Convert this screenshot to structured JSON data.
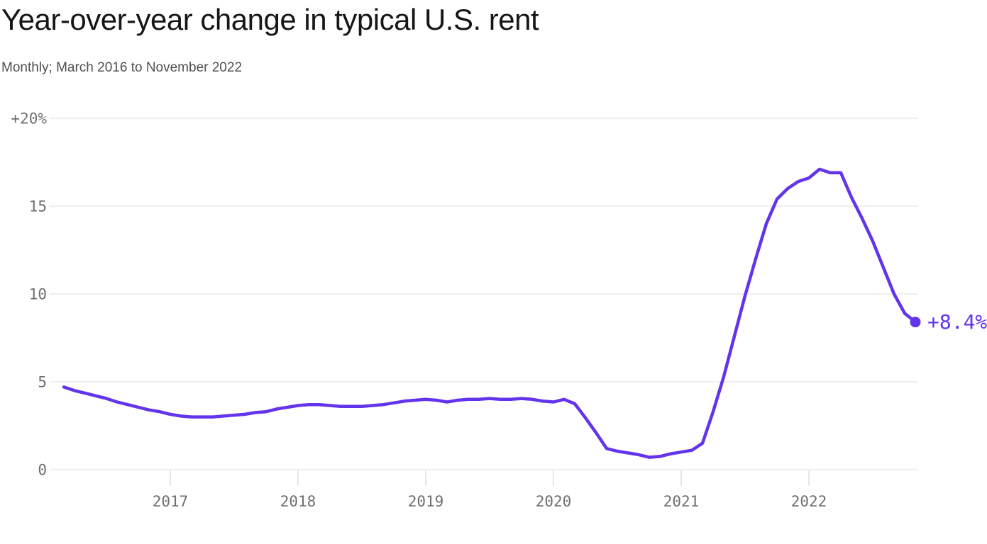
{
  "header": {
    "title": "Year-over-year change in typical U.S. rent",
    "subtitle": "Monthly; March 2016 to November 2022"
  },
  "chart_data": {
    "type": "line",
    "title": "Year-over-year change in typical U.S. rent",
    "subtitle": "Monthly; March 2016 to November 2022",
    "unit": "%",
    "frequency": "monthly",
    "x_start": "Mar 2016",
    "x_end": "Nov 2022",
    "x": [
      "Mar 2016",
      "Apr 2016",
      "May 2016",
      "Jun 2016",
      "Jul 2016",
      "Aug 2016",
      "Sep 2016",
      "Oct 2016",
      "Nov 2016",
      "Dec 2016",
      "Jan 2017",
      "Feb 2017",
      "Mar 2017",
      "Apr 2017",
      "May 2017",
      "Jun 2017",
      "Jul 2017",
      "Aug 2017",
      "Sep 2017",
      "Oct 2017",
      "Nov 2017",
      "Dec 2017",
      "Jan 2018",
      "Feb 2018",
      "Mar 2018",
      "Apr 2018",
      "May 2018",
      "Jun 2018",
      "Jul 2018",
      "Aug 2018",
      "Sep 2018",
      "Oct 2018",
      "Nov 2018",
      "Dec 2018",
      "Jan 2019",
      "Feb 2019",
      "Mar 2019",
      "Apr 2019",
      "May 2019",
      "Jun 2019",
      "Jul 2019",
      "Aug 2019",
      "Sep 2019",
      "Oct 2019",
      "Nov 2019",
      "Dec 2019",
      "Jan 2020",
      "Feb 2020",
      "Mar 2020",
      "Apr 2020",
      "May 2020",
      "Jun 2020",
      "Jul 2020",
      "Aug 2020",
      "Sep 2020",
      "Oct 2020",
      "Nov 2020",
      "Dec 2020",
      "Jan 2021",
      "Feb 2021",
      "Mar 2021",
      "Apr 2021",
      "May 2021",
      "Jun 2021",
      "Jul 2021",
      "Aug 2021",
      "Sep 2021",
      "Oct 2021",
      "Nov 2021",
      "Dec 2021",
      "Jan 2022",
      "Feb 2022",
      "Mar 2022",
      "Apr 2022",
      "May 2022",
      "Jun 2022",
      "Jul 2022",
      "Aug 2022",
      "Sep 2022",
      "Oct 2022",
      "Nov 2022"
    ],
    "values": [
      4.7,
      4.5,
      4.35,
      4.2,
      4.05,
      3.85,
      3.7,
      3.55,
      3.4,
      3.3,
      3.15,
      3.05,
      3.0,
      3.0,
      3.0,
      3.05,
      3.1,
      3.15,
      3.25,
      3.3,
      3.45,
      3.55,
      3.65,
      3.7,
      3.7,
      3.65,
      3.6,
      3.6,
      3.6,
      3.65,
      3.7,
      3.8,
      3.9,
      3.95,
      4.0,
      3.95,
      3.85,
      3.95,
      4.0,
      4.0,
      4.05,
      4.0,
      4.0,
      4.05,
      4.0,
      3.9,
      3.85,
      4.0,
      3.75,
      2.95,
      2.1,
      1.2,
      1.05,
      0.95,
      0.85,
      0.7,
      0.75,
      0.9,
      1.0,
      1.1,
      1.5,
      3.3,
      5.3,
      7.6,
      9.9,
      12.0,
      14.0,
      15.4,
      16.0,
      16.4,
      16.6,
      17.1,
      16.9,
      16.9,
      15.5,
      14.3,
      13.0,
      11.5,
      10.0,
      8.9,
      8.4
    ],
    "ylim": [
      0,
      20
    ],
    "y_ticks": [
      {
        "value": 20,
        "label": "+20%"
      },
      {
        "value": 15,
        "label": "15"
      },
      {
        "value": 10,
        "label": "10"
      },
      {
        "value": 5,
        "label": "5"
      },
      {
        "value": 0,
        "label": "0"
      }
    ],
    "x_ticks": [
      {
        "label": "2017",
        "month": "Jan 2017"
      },
      {
        "label": "2018",
        "month": "Jan 2018"
      },
      {
        "label": "2019",
        "month": "Jan 2019"
      },
      {
        "label": "2020",
        "month": "Jan 2020"
      },
      {
        "label": "2021",
        "month": "Jan 2021"
      },
      {
        "label": "2022",
        "month": "Jan 2022"
      }
    ],
    "end_label": "+8.4%",
    "grid": "horizontal gridlines only",
    "legend": "none",
    "line_color": "#6334eb",
    "grid_color": "#e4e4e4",
    "tick_mark_color": "#d9d9d9",
    "tick_text_color": "#6f6f6f"
  }
}
